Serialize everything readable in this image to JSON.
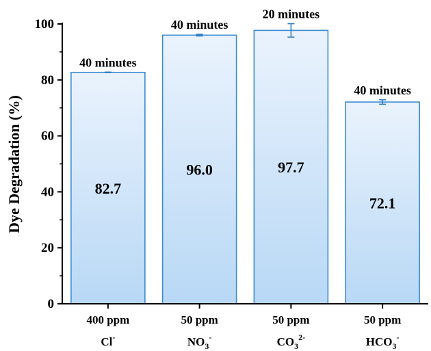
{
  "chart_data": {
    "type": "bar",
    "ylabel": "Dye Degradation (%)",
    "ylim": [
      0,
      100
    ],
    "yticks": [
      "0",
      "20",
      "40",
      "60",
      "80",
      "100"
    ],
    "grid": false,
    "colors": {
      "bar_top": "#eaf3fd",
      "bar_bottom": "#b8d8f5",
      "bar_edge": "#3a8ad1",
      "error_bar": "#2f7fc6"
    },
    "categories": [
      {
        "concentration": "400 ppm",
        "ion": "Cl",
        "ion_sub": "",
        "ion_sup": "-"
      },
      {
        "concentration": "50 ppm",
        "ion": "NO",
        "ion_sub": "3",
        "ion_sup": "-"
      },
      {
        "concentration": "50 ppm",
        "ion": "CO",
        "ion_sub": "3",
        "ion_sup": "2-"
      },
      {
        "concentration": "50 ppm",
        "ion": "HCO",
        "ion_sub": "3",
        "ion_sup": "-"
      }
    ],
    "values": [
      82.7,
      96.0,
      97.7,
      72.1
    ],
    "value_labels": [
      "82.7",
      "96.0",
      "97.7",
      "72.1"
    ],
    "errors": [
      0.1,
      0.3,
      2.4,
      0.8
    ],
    "time_labels": [
      "40 minutes",
      "40 minutes",
      "20 minutes",
      "40 minutes"
    ]
  }
}
